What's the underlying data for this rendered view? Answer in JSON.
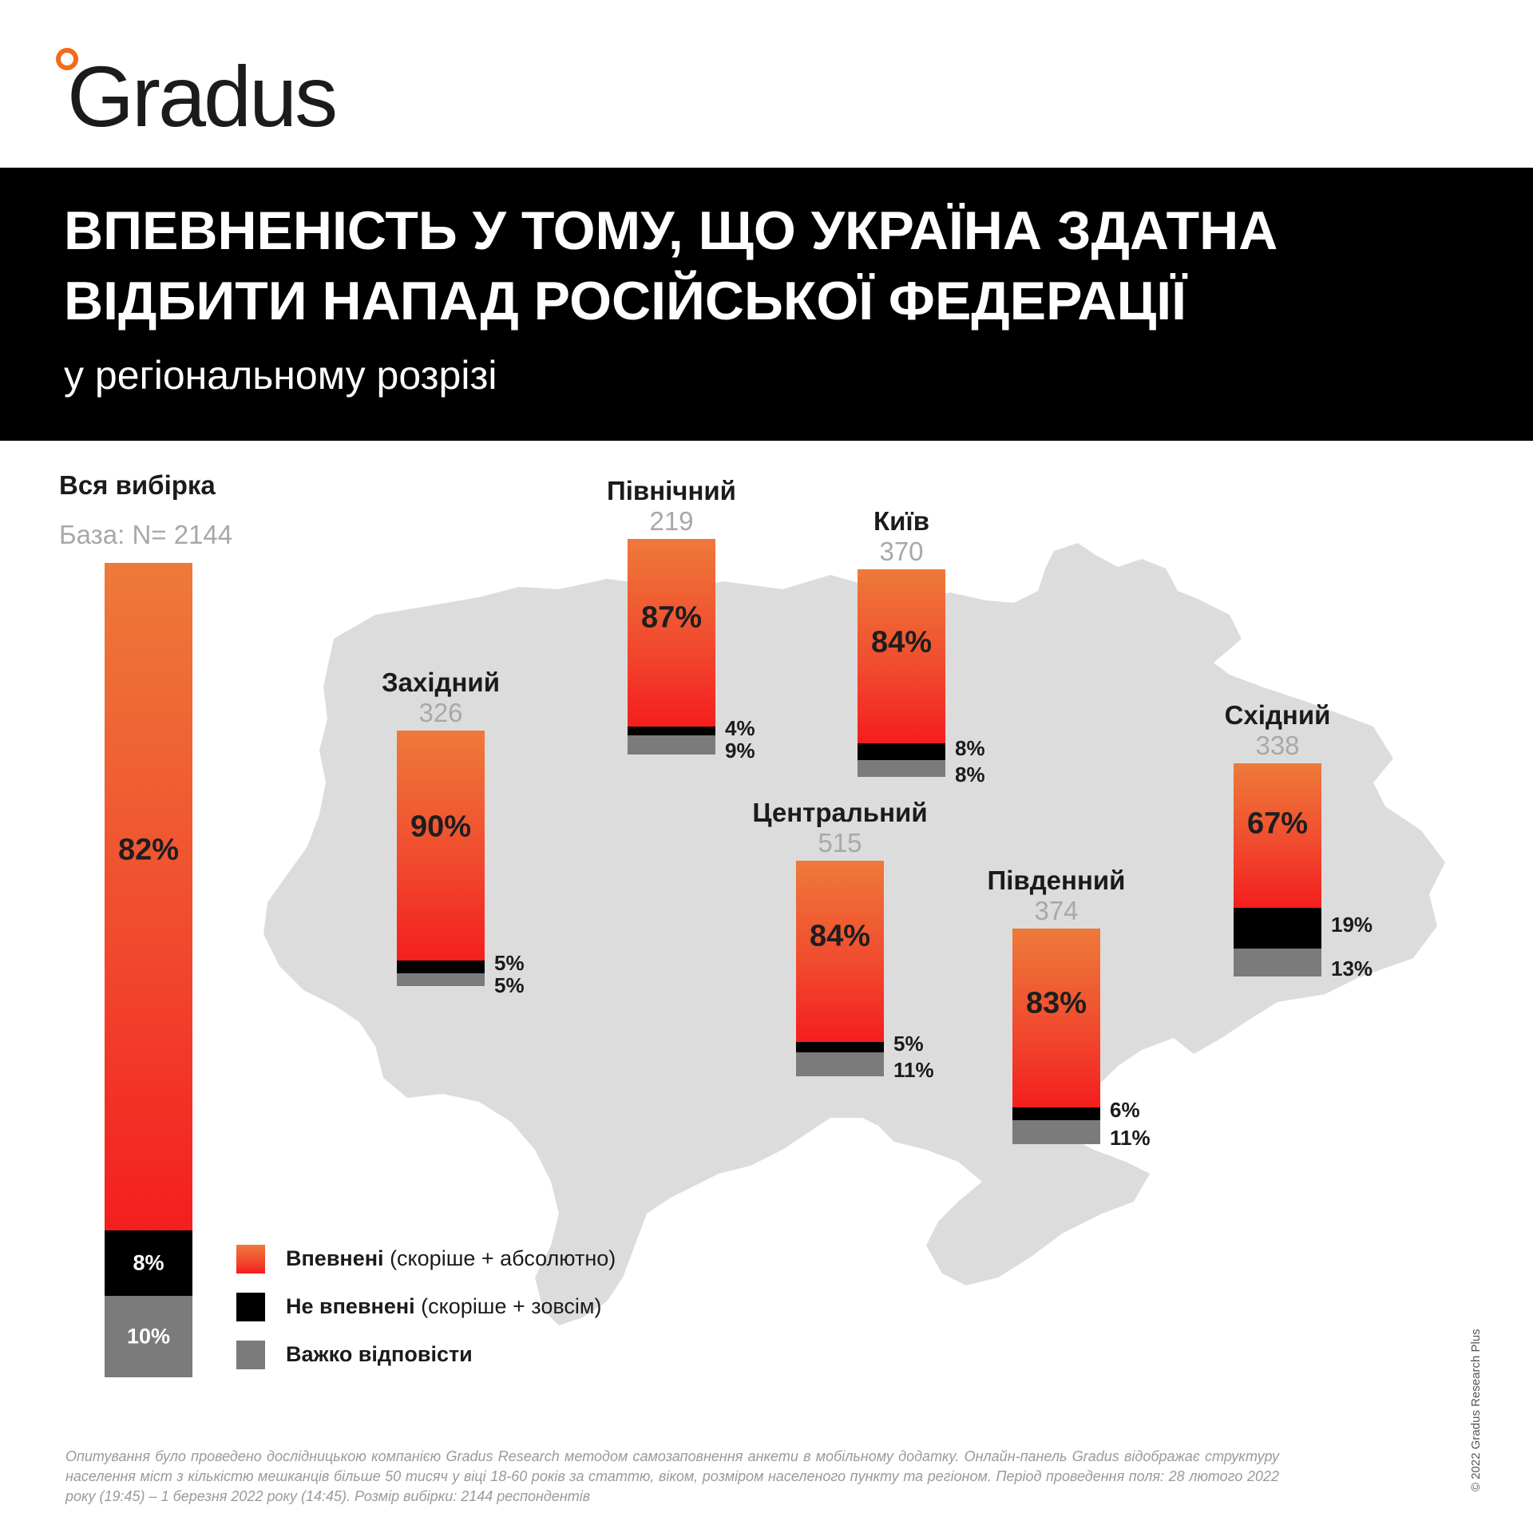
{
  "brand": {
    "name": "Gradus",
    "accent": "#f26a1b"
  },
  "header": {
    "title": "Впевненість у тому, що Україна здатна відбити напад Російської Федерації",
    "subtitle": "у регіональному розрізі"
  },
  "legend": [
    {
      "bold": "Впевнені",
      "rest": " (скоріше + абсолютно)",
      "color": "#f1472d"
    },
    {
      "bold": "Не впевнені",
      "rest": " (скоріше + зовсім)",
      "color": "#000000"
    },
    {
      "bold": "Важко відповісти",
      "rest": "",
      "color": "#7b7b7b"
    }
  ],
  "chart_data": {
    "type": "bar",
    "stacked": true,
    "series": [
      {
        "name": "Впевнені (скоріше + абсолютно)",
        "color": "#f1472d"
      },
      {
        "name": "Не впевнені (скоріше + зовсім)",
        "color": "#000000"
      },
      {
        "name": "Важко відповісти",
        "color": "#7b7b7b"
      }
    ],
    "regions": [
      {
        "id": "total",
        "name": "Вся вибірка",
        "base": "База: N= 2144",
        "confident": 82,
        "not_confident": 8,
        "hard": 10
      },
      {
        "id": "west",
        "name": "Західний",
        "base": "326",
        "confident": 90,
        "not_confident": 5,
        "hard": 5
      },
      {
        "id": "north",
        "name": "Північний",
        "base": "219",
        "confident": 87,
        "not_confident": 4,
        "hard": 9
      },
      {
        "id": "kyiv",
        "name": "Київ",
        "base": "370",
        "confident": 84,
        "not_confident": 8,
        "hard": 8
      },
      {
        "id": "center",
        "name": "Центральний",
        "base": "515",
        "confident": 84,
        "not_confident": 5,
        "hard": 11
      },
      {
        "id": "south",
        "name": "Південний",
        "base": "374",
        "confident": 83,
        "not_confident": 6,
        "hard": 11
      },
      {
        "id": "east",
        "name": "Східний",
        "base": "338",
        "confident": 67,
        "not_confident": 19,
        "hard": 13
      }
    ]
  },
  "footnote": "Опитування було проведено дослідницькою компанією Gradus Research методом самозаповнення анкети в мобільному додатку. Онлайн-панель Gradus відображає структуру населення міст з кількістю мешканців більше 50 тисяч у віці 18-60 років за статтю, віком, розміром населеного пункту та регіоном. Період проведення поля: 28 лютого 2022 року (19:45) – 1 березня 2022 року (14:45). Розмір вибірки: 2144 респондентів",
  "copyright": "© 2022 Gradus Research Plus"
}
